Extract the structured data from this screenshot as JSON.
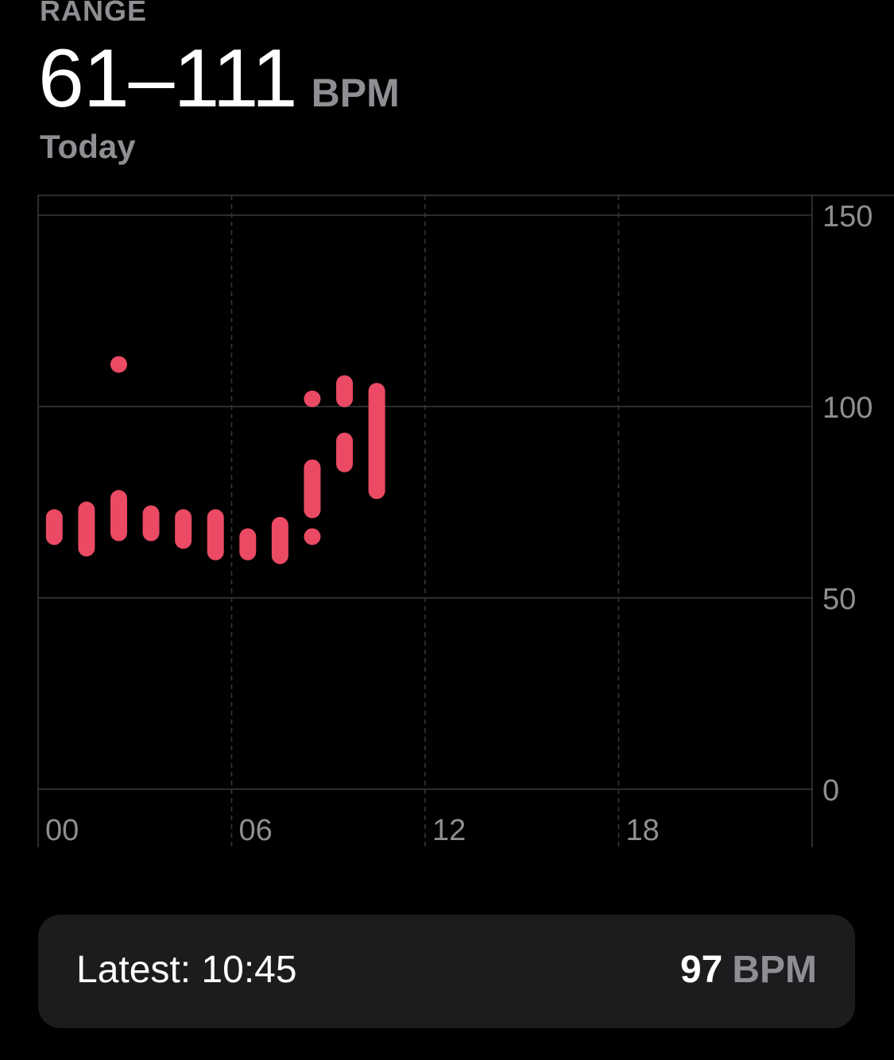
{
  "summary": {
    "label": "RANGE",
    "value": "61–111",
    "unit": "BPM",
    "period": "Today"
  },
  "latest": {
    "label": "Latest: 10:45",
    "value": "97",
    "unit": "BPM"
  },
  "colors": {
    "background": "#000000",
    "bar": "#ea4a64",
    "grid": "#3a3a3c",
    "axis_text": "#8e8e93",
    "card": "#1c1c1e"
  },
  "chart_data": {
    "type": "range-bar",
    "title": "",
    "xlabel": "",
    "ylabel": "",
    "x_unit": "hour",
    "xlim": [
      0,
      24
    ],
    "ylim": [
      0,
      150
    ],
    "x_ticks": [
      "00",
      "06",
      "12",
      "18"
    ],
    "y_ticks": [
      "0",
      "50",
      "100",
      "150"
    ],
    "grid": true,
    "y_axis_position": "right",
    "series": [
      {
        "values": [
          {
            "x": 0.5,
            "low": 66,
            "high": 71
          },
          {
            "x": 1.5,
            "low": 63,
            "high": 73
          },
          {
            "x": 2.5,
            "low": 67,
            "high": 76
          },
          {
            "x": 2.5,
            "low": 111,
            "high": 111
          },
          {
            "x": 3.5,
            "low": 67,
            "high": 72
          },
          {
            "x": 4.5,
            "low": 65,
            "high": 71
          },
          {
            "x": 5.5,
            "low": 62,
            "high": 71
          },
          {
            "x": 6.5,
            "low": 62,
            "high": 66
          },
          {
            "x": 7.5,
            "low": 61,
            "high": 69
          },
          {
            "x": 8.5,
            "low": 66,
            "high": 66
          },
          {
            "x": 8.5,
            "low": 73,
            "high": 84
          },
          {
            "x": 8.5,
            "low": 102,
            "high": 102
          },
          {
            "x": 9.5,
            "low": 85,
            "high": 91
          },
          {
            "x": 9.5,
            "low": 102,
            "high": 106
          },
          {
            "x": 10.5,
            "low": 78,
            "high": 104
          }
        ]
      }
    ]
  }
}
